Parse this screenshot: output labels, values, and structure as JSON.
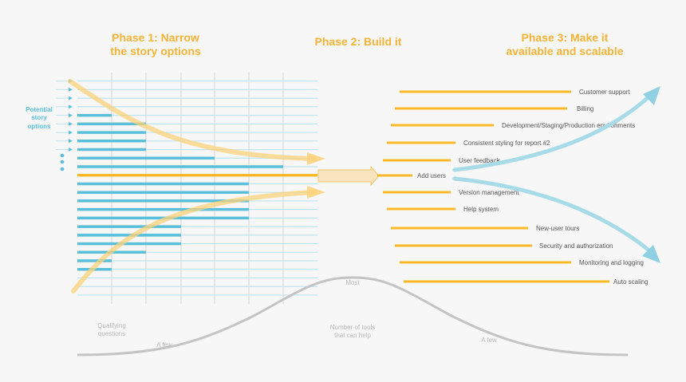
{
  "phases": [
    {
      "line1": "Phase 1: Narrow",
      "line2": "the story options"
    },
    {
      "line1": "Phase 2: Build it"
    },
    {
      "line1": "Phase 3: Make it",
      "line2": "available and scalable"
    }
  ],
  "left_label": {
    "line1": "Potential",
    "line2": "story",
    "line3": "options"
  },
  "features": [
    "Customer support",
    "Billing",
    "Development/Staging/Production environments",
    "Consistent styling for report #2",
    "User feedback",
    "Add users",
    "Version management",
    "Help system",
    "New-user tours",
    "Security and authorization",
    "Monitoring and logging",
    "Auto scaling"
  ],
  "bottom": {
    "qualifying_line1": "Qualifying",
    "qualifying_line2": "questions",
    "few_left": "A few",
    "most": "Most",
    "tools_line1": "Number of tools",
    "tools_line2": "that can help",
    "few_right": "A few"
  },
  "colors": {
    "orange": "#fbb829",
    "blue": "#5bbfda",
    "light_blue": "#bfe4f0",
    "gray": "#c4c4c4",
    "title": "#f5b335"
  }
}
